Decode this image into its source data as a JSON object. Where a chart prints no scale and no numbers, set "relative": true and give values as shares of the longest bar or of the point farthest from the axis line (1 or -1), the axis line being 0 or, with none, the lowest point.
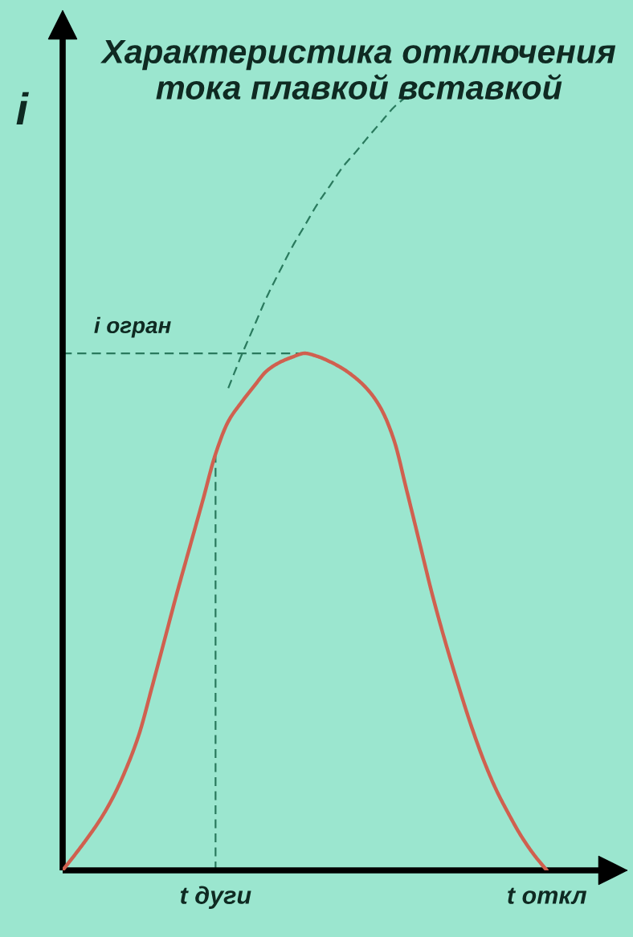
{
  "chart_data": {
    "type": "line",
    "relative": true,
    "title": "Характеристика отключения\nтока плавкой вставкой",
    "ylabel": "i",
    "categories": [
      null,
      null,
      null,
      null,
      null,
      null,
      null,
      null,
      null,
      null,
      null,
      null,
      "t дуги",
      null,
      null,
      null,
      null,
      null,
      null,
      null,
      null,
      null,
      null,
      null,
      null,
      null,
      null,
      null,
      null,
      null,
      null,
      null,
      null,
      null,
      null,
      null,
      null,
      null,
      "t откл"
    ],
    "tick_labels": "x",
    "series": [
      {
        "color": "#d0604f",
        "line_style": "solid",
        "values": [
          0,
          0.021,
          0.043,
          0.067,
          0.096,
          0.132,
          0.176,
          0.236,
          0.298,
          0.36,
          0.419,
          0.478,
          0.538,
          0.58,
          0.604,
          0.625,
          0.645,
          0.656,
          0.663,
          0.668,
          0.664,
          0.657,
          0.648,
          0.636,
          0.62,
          0.596,
          0.556,
          0.491,
          0.424,
          0.357,
          0.297,
          0.242,
          0.19,
          0.144,
          0.105,
          0.073,
          0.044,
          0.02,
          0
        ]
      },
      {
        "color": "#2a7a5e",
        "line_style": "dashed",
        "values": [
          null,
          null,
          null,
          null,
          null,
          null,
          null,
          null,
          null,
          null,
          null,
          null,
          null,
          0.623,
          0.664,
          0.702,
          0.74,
          0.773,
          0.805,
          0.833,
          0.861,
          0.885,
          0.909,
          0.928,
          0.948,
          0.967,
          0.986,
          1,
          null,
          null,
          null,
          null,
          null,
          null,
          null,
          null,
          null,
          null,
          null
        ]
      }
    ],
    "ref_lines": [
      {
        "axis": "y",
        "value": 0.668,
        "label": "i огран",
        "color": "#2a7a5e",
        "line_style": "dashed"
      },
      {
        "axis": "x",
        "value": "t дуги",
        "color": "#2a7a5e",
        "line_style": "dashed"
      }
    ]
  }
}
